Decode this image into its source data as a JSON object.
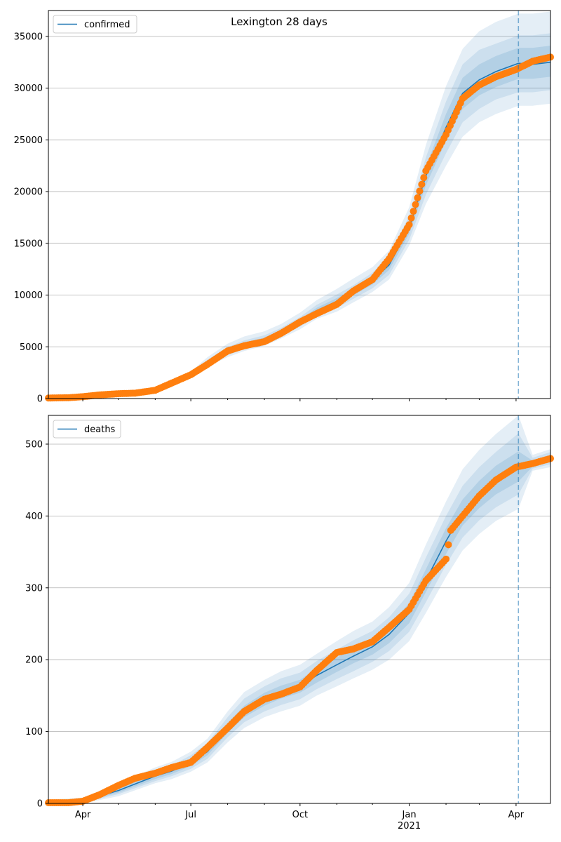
{
  "figure": {
    "title": "Lexington 28 days"
  },
  "colors": {
    "model_line": "#1f77b4",
    "band": "#1f77b4",
    "observed_points": "#ff7f0e",
    "grid": "#b0b0b0",
    "forecast_marker": "#1f77b4"
  },
  "chart_data": [
    {
      "type": "line",
      "panel": "top",
      "legend": "confirmed",
      "legend_position": "top-left",
      "grid": "horizontal",
      "forecast_start": "2021-04-03",
      "xlim": [
        "2020-03-03",
        "2021-04-30"
      ],
      "ylim": [
        0,
        37500
      ],
      "yticks": [
        0,
        5000,
        10000,
        15000,
        20000,
        25000,
        30000,
        35000
      ],
      "model": {
        "dates": [
          "2020-03-03",
          "2020-04-01",
          "2020-05-01",
          "2020-06-01",
          "2020-06-15",
          "2020-07-01",
          "2020-07-15",
          "2020-08-01",
          "2020-08-15",
          "2020-09-01",
          "2020-09-15",
          "2020-10-01",
          "2020-10-15",
          "2020-11-01",
          "2020-11-15",
          "2020-12-01",
          "2020-12-15",
          "2021-01-01",
          "2021-01-15",
          "2021-02-01",
          "2021-02-15",
          "2021-03-01",
          "2021-03-15",
          "2021-04-03",
          "2021-04-15",
          "2021-04-30"
        ],
        "median": [
          0,
          250,
          550,
          800,
          1400,
          2300,
          3500,
          4600,
          5200,
          5700,
          6400,
          7400,
          8500,
          9400,
          10300,
          11400,
          12900,
          16500,
          21500,
          26200,
          29500,
          30800,
          31600,
          32400,
          32300,
          32500
        ],
        "band_95_low": [
          0,
          200,
          450,
          680,
          1200,
          2050,
          3100,
          4000,
          4600,
          5100,
          5800,
          6700,
          7700,
          8400,
          9300,
          10300,
          11500,
          14800,
          18800,
          22500,
          25300,
          26700,
          27500,
          28300,
          28300,
          28500
        ],
        "band_95_high": [
          0,
          300,
          650,
          920,
          1600,
          2600,
          4000,
          5300,
          6000,
          6500,
          7200,
          8300,
          9500,
          10600,
          11600,
          12700,
          14300,
          18500,
          24500,
          30200,
          33800,
          35500,
          36400,
          37200,
          37200,
          37400
        ],
        "band_80_low": [
          0,
          215,
          480,
          720,
          1270,
          2130,
          3240,
          4200,
          4800,
          5300,
          6000,
          6950,
          7950,
          8750,
          9650,
          10650,
          11950,
          15350,
          19700,
          23700,
          26700,
          28000,
          28900,
          29600,
          29600,
          29800
        ],
        "band_80_high": [
          0,
          285,
          620,
          880,
          1530,
          2470,
          3760,
          4980,
          5620,
          6120,
          6820,
          7870,
          9050,
          10050,
          10950,
          12150,
          13850,
          17650,
          23300,
          28700,
          32300,
          33700,
          34300,
          35100,
          35100,
          35300
        ],
        "band_50_low": [
          0,
          232,
          515,
          755,
          1330,
          2210,
          3380,
          4400,
          5000,
          5500,
          6200,
          7180,
          8230,
          9080,
          9980,
          11020,
          12420,
          15920,
          20600,
          24900,
          28000,
          29300,
          30100,
          30900,
          30900,
          31100
        ],
        "band_50_high": [
          0,
          268,
          585,
          845,
          1470,
          2390,
          3620,
          4800,
          5400,
          5900,
          6600,
          7620,
          8770,
          9720,
          10620,
          11780,
          13380,
          17080,
          22400,
          27500,
          31000,
          32300,
          33100,
          33900,
          33900,
          34100
        ]
      },
      "observed": {
        "dates": [
          "2020-03-03",
          "2020-03-20",
          "2020-04-01",
          "2020-04-15",
          "2020-05-01",
          "2020-05-15",
          "2020-06-01",
          "2020-06-15",
          "2020-07-01",
          "2020-07-15",
          "2020-08-01",
          "2020-08-15",
          "2020-09-01",
          "2020-09-15",
          "2020-10-01",
          "2020-10-15",
          "2020-11-01",
          "2020-11-15",
          "2020-12-01",
          "2020-12-15",
          "2021-01-01",
          "2021-01-15",
          "2021-02-01",
          "2021-02-15",
          "2021-03-01",
          "2021-03-15",
          "2021-04-01",
          "2021-04-15",
          "2021-04-30"
        ],
        "values": [
          50,
          80,
          180,
          350,
          470,
          520,
          800,
          1500,
          2300,
          3300,
          4600,
          5100,
          5500,
          6300,
          7400,
          8200,
          9100,
          10400,
          11500,
          13500,
          16800,
          22000,
          25500,
          29000,
          30300,
          31100,
          31800,
          32600,
          33000
        ]
      }
    },
    {
      "type": "line",
      "panel": "bottom",
      "legend": "deaths",
      "legend_position": "top-left",
      "grid": "horizontal",
      "forecast_start": "2021-04-03",
      "xlim": [
        "2020-03-03",
        "2021-04-30"
      ],
      "ylim": [
        0,
        540
      ],
      "yticks": [
        0,
        100,
        200,
        300,
        400,
        500
      ],
      "xticks": [
        {
          "date": "2020-04-01",
          "label": "Apr"
        },
        {
          "date": "2020-07-01",
          "label": "Jul"
        },
        {
          "date": "2020-10-01",
          "label": "Oct"
        },
        {
          "date": "2021-01-01",
          "label": "Jan",
          "sublabel": "2021"
        },
        {
          "date": "2021-04-01",
          "label": "Apr"
        }
      ],
      "model": {
        "dates": [
          "2020-03-03",
          "2020-04-01",
          "2020-05-01",
          "2020-06-01",
          "2020-06-15",
          "2020-07-01",
          "2020-07-15",
          "2020-08-01",
          "2020-08-15",
          "2020-09-01",
          "2020-09-15",
          "2020-10-01",
          "2020-10-15",
          "2020-11-01",
          "2020-11-15",
          "2020-12-01",
          "2020-12-15",
          "2021-01-01",
          "2021-01-15",
          "2021-02-01",
          "2021-02-15",
          "2021-03-01",
          "2021-03-15",
          "2021-04-03",
          "2021-04-15",
          "2021-04-30"
        ],
        "median": [
          0,
          3,
          18,
          38,
          45,
          57,
          72,
          105,
          128,
          145,
          155,
          163,
          178,
          193,
          205,
          218,
          235,
          265,
          310,
          365,
          405,
          430,
          450,
          468,
          473,
          480
        ],
        "band_95_low": [
          0,
          0,
          10,
          28,
          34,
          44,
          57,
          85,
          105,
          120,
          128,
          136,
          150,
          163,
          174,
          186,
          200,
          226,
          265,
          315,
          352,
          375,
          393,
          410,
          463,
          468
        ],
        "band_95_high": [
          5,
          8,
          28,
          50,
          58,
          72,
          90,
          128,
          155,
          172,
          184,
          193,
          208,
          226,
          240,
          253,
          273,
          307,
          360,
          420,
          465,
          492,
          514,
          540,
          485,
          493
        ],
        "band_80_low": [
          0,
          1,
          13,
          31,
          38,
          48,
          62,
          92,
          113,
          128,
          137,
          145,
          159,
          173,
          184,
          197,
          212,
          239,
          280,
          332,
          370,
          394,
          412,
          430,
          466,
          472
        ],
        "band_80_high": [
          3,
          6,
          24,
          46,
          53,
          67,
          84,
          120,
          146,
          163,
          174,
          182,
          198,
          214,
          227,
          240,
          259,
          292,
          342,
          400,
          442,
          468,
          489,
          515,
          481,
          489
        ],
        "band_50_low": [
          0,
          2,
          15,
          34,
          41,
          52,
          67,
          98,
          120,
          136,
          146,
          154,
          168,
          183,
          195,
          207,
          223,
          251,
          294,
          347,
          387,
          411,
          430,
          448,
          469,
          476
        ],
        "band_50_high": [
          2,
          4,
          21,
          42,
          49,
          62,
          78,
          112,
          136,
          154,
          164,
          172,
          188,
          203,
          215,
          229,
          247,
          279,
          326,
          383,
          423,
          449,
          470,
          490,
          477,
          485
        ]
      },
      "observed": {
        "dates": [
          "2020-03-03",
          "2020-03-20",
          "2020-04-01",
          "2020-04-15",
          "2020-05-01",
          "2020-05-15",
          "2020-06-01",
          "2020-06-15",
          "2020-07-01",
          "2020-07-15",
          "2020-08-01",
          "2020-08-15",
          "2020-09-01",
          "2020-09-15",
          "2020-10-01",
          "2020-10-15",
          "2020-11-01",
          "2020-11-15",
          "2020-12-01",
          "2020-12-15",
          "2021-01-01",
          "2021-01-15",
          "2021-02-01",
          "2021-02-05",
          "2021-02-15",
          "2021-03-01",
          "2021-03-15",
          "2021-04-01",
          "2021-04-15",
          "2021-04-30"
        ],
        "values": [
          1,
          1,
          3,
          12,
          25,
          35,
          42,
          50,
          57,
          78,
          105,
          128,
          145,
          152,
          162,
          185,
          210,
          215,
          225,
          245,
          270,
          310,
          340,
          380,
          400,
          428,
          450,
          468,
          473,
          480
        ]
      }
    }
  ]
}
